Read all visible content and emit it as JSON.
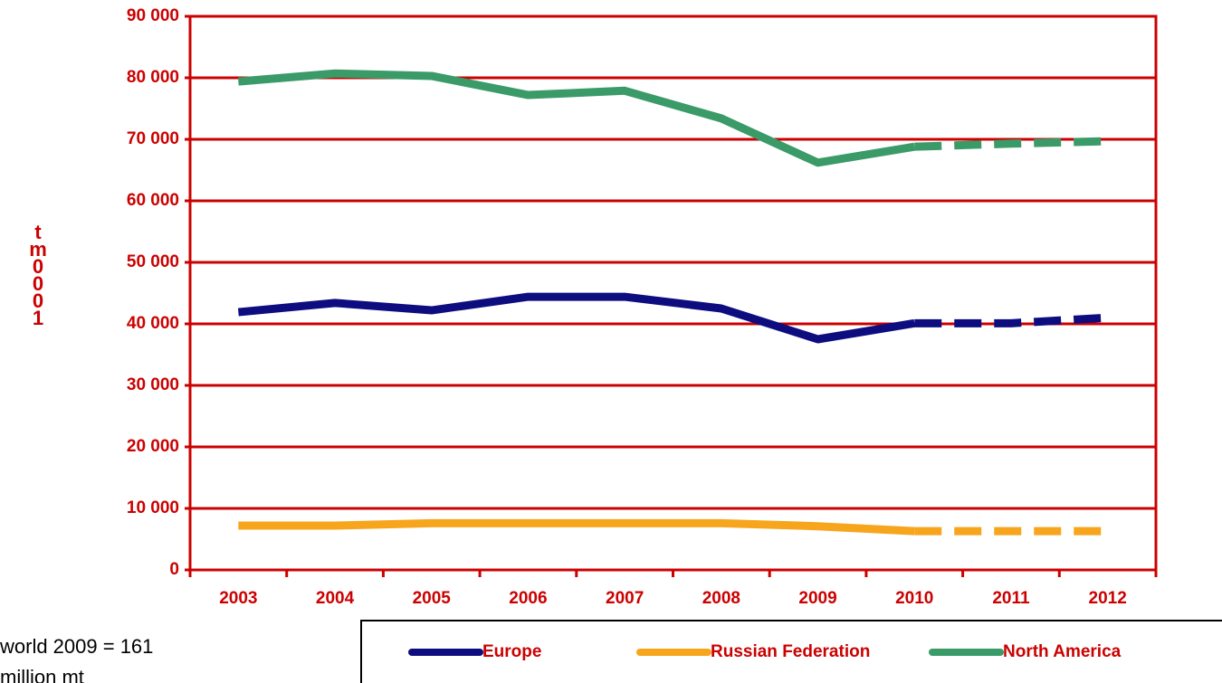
{
  "chart_data": {
    "type": "line",
    "ylabel": "1000 mt",
    "annotation": [
      "world 2009 = 161",
      "million mt"
    ],
    "categories": [
      "2003",
      "2004",
      "2005",
      "2006",
      "2007",
      "2008",
      "2009",
      "2010",
      "2011",
      "2012"
    ],
    "dashed_from": "2010",
    "series": [
      {
        "name": "Europe",
        "color": "#0d0d80",
        "values": [
          41900,
          43400,
          42200,
          44400,
          44400,
          42500,
          37500,
          40100,
          40100,
          41000
        ]
      },
      {
        "name": "Russian Federation",
        "color": "#f7a51c",
        "values": [
          7200,
          7200,
          7600,
          7600,
          7600,
          7600,
          7100,
          6300,
          6300,
          6300
        ]
      },
      {
        "name": "North America",
        "color": "#3a9a68",
        "values": [
          79400,
          80700,
          80300,
          77200,
          77900,
          73400,
          66200,
          68800,
          69300,
          69700
        ]
      }
    ],
    "ylim": [
      0,
      90000
    ],
    "yticks": [
      0,
      {
        "value": 10000,
        "label": "10 000"
      },
      {
        "value": 20000,
        "label": "20 000"
      },
      {
        "value": 30000,
        "label": "30 000"
      },
      {
        "value": 40000,
        "label": "40 000"
      },
      {
        "value": 50000,
        "label": "50 000"
      },
      {
        "value": 60000,
        "label": "60 000"
      },
      {
        "value": 70000,
        "label": "70 000"
      },
      {
        "value": 80000,
        "label": "80 000"
      },
      {
        "value": 90000,
        "label": "90 000"
      }
    ],
    "grid": true,
    "axis_color": "#cc0000"
  }
}
